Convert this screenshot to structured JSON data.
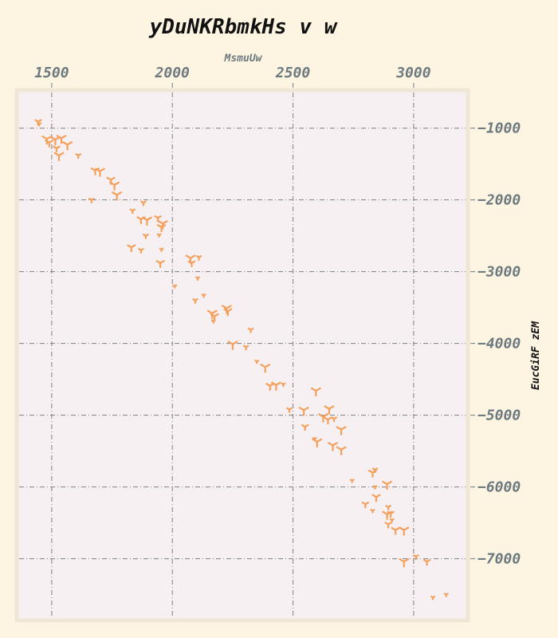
{
  "chart_data": {
    "type": "scatter",
    "title": "yDuNKRbmkHs v w",
    "xlabel": "MsmuUw",
    "ylabel": "EucGiRF zEM",
    "xlim": [
      1355,
      3225
    ],
    "ylim": [
      -7860,
      -470
    ],
    "x_ticks": [
      1500,
      2000,
      2500,
      3000
    ],
    "x_tick_labels": [
      "1500",
      "2000",
      "2500",
      "3000"
    ],
    "y_ticks": [
      -1000,
      -2000,
      -3000,
      -4000,
      -5000,
      -6000,
      -7000
    ],
    "y_tick_labels": [
      "−1000",
      "−2000",
      "−3000",
      "−4000",
      "−5000",
      "−6000",
      "−7000"
    ],
    "x_axis_position": "top",
    "y_axis_position": "right",
    "grid": true,
    "marker": "tri",
    "color": "#f5a05a",
    "series": [
      {
        "points": [
          [
            1444,
            -910,
            5
          ],
          [
            1448,
            -940,
            3
          ],
          [
            1480,
            -1150,
            7
          ],
          [
            1490,
            -1200,
            6
          ],
          [
            1515,
            -1160,
            7
          ],
          [
            1540,
            -1140,
            7
          ],
          [
            1565,
            -1230,
            7
          ],
          [
            1520,
            -1280,
            5
          ],
          [
            1530,
            -1380,
            7
          ],
          [
            1610,
            -1380,
            4
          ],
          [
            1680,
            -1590,
            6
          ],
          [
            1700,
            -1600,
            7
          ],
          [
            1745,
            -1720,
            6
          ],
          [
            1760,
            -1790,
            7
          ],
          [
            1770,
            -1930,
            7
          ],
          [
            1665,
            -2000,
            4
          ],
          [
            1835,
            -2150,
            4
          ],
          [
            1880,
            -2040,
            4
          ],
          [
            1870,
            -2270,
            6
          ],
          [
            1895,
            -2280,
            7
          ],
          [
            1940,
            -2250,
            5
          ],
          [
            1960,
            -2330,
            7
          ],
          [
            1955,
            -2380,
            6
          ],
          [
            1945,
            -2490,
            3
          ],
          [
            1890,
            -2500,
            4
          ],
          [
            1830,
            -2660,
            6
          ],
          [
            1870,
            -2700,
            4
          ],
          [
            1955,
            -2690,
            3
          ],
          [
            1950,
            -2880,
            6
          ],
          [
            2075,
            -2810,
            7
          ],
          [
            2110,
            -2800,
            4
          ],
          [
            2080,
            -2880,
            5
          ],
          [
            2105,
            -3090,
            3
          ],
          [
            2010,
            -3200,
            3
          ],
          [
            2095,
            -3400,
            4
          ],
          [
            2130,
            -3330,
            3
          ],
          [
            2165,
            -3580,
            7
          ],
          [
            2175,
            -3620,
            6
          ],
          [
            2225,
            -3510,
            7
          ],
          [
            2230,
            -3550,
            6
          ],
          [
            2170,
            -3690,
            3
          ],
          [
            2325,
            -3810,
            4
          ],
          [
            2250,
            -4010,
            7
          ],
          [
            2305,
            -4050,
            4
          ],
          [
            2350,
            -4250,
            3
          ],
          [
            2385,
            -4330,
            7
          ],
          [
            2405,
            -4590,
            6
          ],
          [
            2430,
            -4580,
            7
          ],
          [
            2460,
            -4570,
            3
          ],
          [
            2595,
            -4660,
            7
          ],
          [
            2485,
            -4920,
            4
          ],
          [
            2545,
            -4930,
            7
          ],
          [
            2625,
            -5020,
            7
          ],
          [
            2650,
            -4910,
            7
          ],
          [
            2645,
            -5060,
            6
          ],
          [
            2670,
            -5050,
            4
          ],
          [
            2700,
            -5200,
            7
          ],
          [
            2550,
            -5160,
            5
          ],
          [
            2590,
            -5330,
            3
          ],
          [
            2600,
            -5370,
            7
          ],
          [
            2665,
            -5420,
            7
          ],
          [
            2700,
            -5480,
            7
          ],
          [
            2745,
            -5910,
            3
          ],
          [
            2830,
            -5800,
            6
          ],
          [
            2840,
            -5760,
            4
          ],
          [
            2890,
            -5960,
            7
          ],
          [
            2840,
            -6000,
            3
          ],
          [
            2845,
            -6140,
            6
          ],
          [
            2800,
            -6240,
            5
          ],
          [
            2830,
            -6330,
            3
          ],
          [
            2895,
            -6280,
            4
          ],
          [
            2890,
            -6380,
            7
          ],
          [
            2905,
            -6370,
            5
          ],
          [
            2910,
            -6460,
            3
          ],
          [
            2895,
            -6520,
            5
          ],
          [
            2925,
            -6600,
            6
          ],
          [
            2960,
            -6600,
            7
          ],
          [
            3010,
            -6970,
            4
          ],
          [
            2960,
            -7040,
            7
          ],
          [
            3055,
            -7040,
            5
          ],
          [
            3080,
            -7540,
            3
          ],
          [
            3135,
            -7500,
            3
          ]
        ]
      }
    ]
  }
}
